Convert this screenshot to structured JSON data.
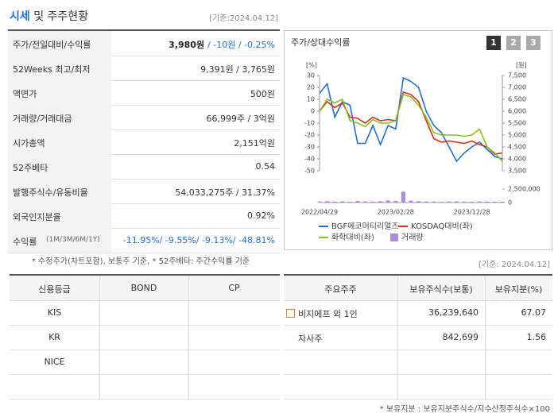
{
  "header": {
    "title": "시세",
    "title_rest": "및 주주현황",
    "date": "[기준:2024.04.12]"
  },
  "summary": {
    "rows": [
      {
        "label": "주가/전일대비/수익률",
        "value": "3,980원",
        "value2": "/ -10원 / -0.25%"
      },
      {
        "label": "52Weeks 최고/최저",
        "value": "9,391원 / 3,765원"
      },
      {
        "label": "액면가",
        "value": "500원"
      },
      {
        "label": "거래량/거래대금",
        "value": "66,999주 / 3억원"
      },
      {
        "label": "시가총액",
        "value": "2,151억원"
      },
      {
        "label": "52주베타",
        "value": "0.54"
      },
      {
        "label": "발행주식수/유동비율",
        "value": "54,033,275주 / 31.37%"
      },
      {
        "label": "외국인지분율",
        "value": "0.92%"
      },
      {
        "label": "수익률",
        "sub": "(1M/3M/6M/1Y)",
        "value2": "-11.95%/ -9.55%/ -9.13%/ -48.81%"
      }
    ],
    "note": "* 수정주가(차트포함), 보통주 기준, * 52주베타: 주간수익률 기준"
  },
  "chart_panel": {
    "title": "주가/상대수익률",
    "buttons": [
      "1",
      "2",
      "3"
    ]
  },
  "chart_data": {
    "type": "line",
    "ylabel": "[%]",
    "y2label": "[원]",
    "categories": [
      "2022/04/29",
      null,
      null,
      null,
      null,
      null,
      null,
      null,
      null,
      null,
      "2023/02/28",
      null,
      null,
      null,
      null,
      null,
      null,
      null,
      null,
      null,
      "2023/12/28",
      null,
      null,
      null,
      null
    ],
    "series": [
      {
        "name": "BGF에코머티리얼즈",
        "color": "#1f6fd6",
        "axis": "y2",
        "values": [
          6750,
          7150,
          5750,
          6400,
          6250,
          4650,
          4650,
          5400,
          4600,
          5400,
          5250,
          7400,
          7250,
          7000,
          6000,
          5400,
          5100,
          4500,
          3900,
          4250,
          4500,
          4700,
          4400,
          4100,
          4000
        ]
      },
      {
        "name": "KOSDAQ대비(좌)",
        "color": "#d6301f",
        "values": [
          0,
          8,
          3,
          7,
          -5,
          -6,
          -10,
          -5,
          -8,
          -7,
          -8,
          16,
          14,
          8,
          -8,
          -23,
          -26,
          -25,
          -26,
          -27,
          -25,
          -28,
          -30,
          -36,
          -35
        ]
      },
      {
        "name": "화학대비(좌)",
        "color": "#8cbf1f",
        "values": [
          0,
          10,
          7,
          10,
          -8,
          -10,
          -13,
          -7,
          -10,
          -10,
          -8,
          14,
          12,
          5,
          -5,
          -18,
          -20,
          -20,
          -20,
          -21,
          -20,
          -15,
          -30,
          -35,
          -42
        ]
      },
      {
        "name": "거래량",
        "color": "#a98bd9",
        "type": "bar",
        "axis": "y3",
        "values": [
          200000,
          250000,
          180000,
          220000,
          150000,
          300000,
          200000,
          180000,
          250000,
          400000,
          300000,
          2000000,
          350000,
          250000,
          200000,
          180000,
          150000,
          200000,
          220000,
          180000,
          160000,
          200000,
          180000,
          150000,
          170000
        ]
      }
    ],
    "ylim": [
      -50,
      30
    ],
    "yticks": [
      30,
      20,
      10,
      0,
      -10,
      -20,
      -30,
      -40,
      -50
    ],
    "y2lim": [
      3500,
      7500
    ],
    "y2ticks": [
      {
        "value": 7500,
        "label": "7,500"
      },
      {
        "value": 7000,
        "label": "7,000"
      },
      {
        "value": 6500,
        "label": "6,500"
      },
      {
        "value": 6000,
        "label": "6,000"
      },
      {
        "value": 5500,
        "label": "5,500"
      },
      {
        "value": 5000,
        "label": "5,000"
      },
      {
        "value": 4500,
        "label": "4,500"
      },
      {
        "value": 4000,
        "label": "4,000"
      },
      {
        "value": 3500,
        "label": "3,500"
      }
    ],
    "y3lim": [
      0,
      2500000
    ],
    "y3ticks": [
      {
        "value": 2500000,
        "label": "2,500,000"
      },
      0
    ],
    "grid": false
  },
  "credit": {
    "header": [
      "신용등급",
      "BOND",
      "CP"
    ],
    "rows": [
      [
        "KIS"
      ],
      [
        "KR"
      ],
      [
        "NICE"
      ]
    ]
  },
  "holders": {
    "date": "[기준: 2024.04.12]",
    "header": [
      "주요주주",
      "보유주식수(보통)",
      "보유지분(%)"
    ],
    "rows": [
      [
        "비지에프 외 1인",
        "36,239,640",
        "67.07"
      ],
      [
        "자사주",
        "842,699",
        "1.56"
      ]
    ],
    "note": "* 보유지분 : 보유지분주식수/지수산정주식수×100"
  }
}
